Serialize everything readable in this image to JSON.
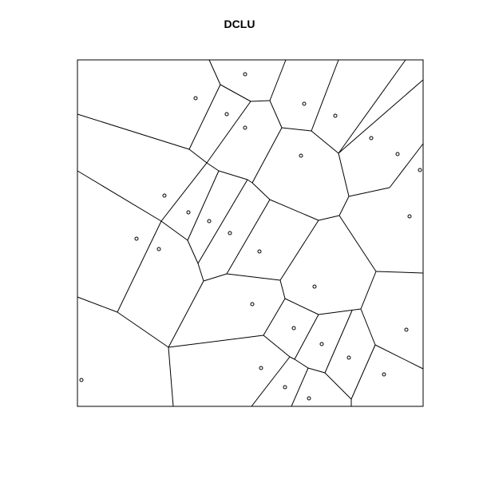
{
  "title": "DCLU",
  "diagram_type": "voronoi-tessellation",
  "colors": {
    "background": "#ffffff",
    "lines": "#000000"
  }
}
